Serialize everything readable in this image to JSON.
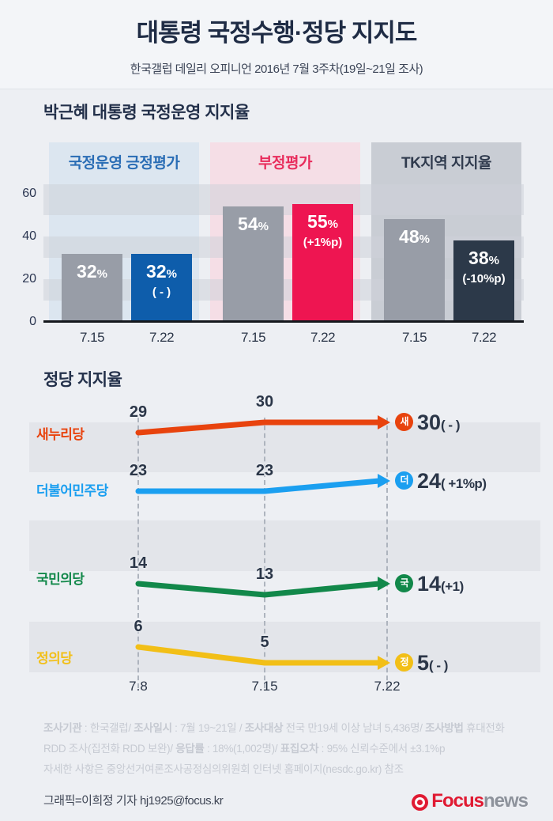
{
  "header": {
    "title": "대통령 국정수행·정당 지지도",
    "subtitle": "한국갤럽 데일리 오피니언 2016년 7월 3주차(19일~21일 조사)"
  },
  "approval_section_title": "박근혜 대통령 국정운영 지지율",
  "party_section_title": "정당 지지율",
  "colors": {
    "page_bg": "#EDEFF3",
    "positive_accent": "#0E5DAB",
    "negative_accent": "#EE1551",
    "tk_accent": "#2C3949",
    "prev_bar_gray": "#989DA7",
    "saenuri": "#E8430E",
    "minjoo": "#1B9FF0",
    "kukmin": "#12884A",
    "justice": "#F2BF17"
  },
  "chart_data": [
    {
      "type": "bar",
      "title": "박근혜 대통령 국정운영 지지율",
      "ylabel": "",
      "ylim": [
        0,
        64
      ],
      "ytick_labels": [
        "60",
        "40",
        "20",
        "0"
      ],
      "unit": "%",
      "grid": "horizontal-stripes",
      "groups": [
        {
          "label": "국정운영 긍정평가",
          "label_color": "#2A6DB5",
          "panel_color": "#DCE6F0",
          "bars": [
            {
              "x_label": "7.15",
              "value": 32,
              "num": "32",
              "unit": "%",
              "change": "",
              "color": "#989DA7"
            },
            {
              "x_label": "7.22",
              "value": 32,
              "num": "32",
              "unit": "%",
              "change": "( - )",
              "color": "#0E5DAB"
            }
          ]
        },
        {
          "label": "부정평가",
          "label_color": "#E82C5C",
          "panel_color": "#F5DEE6",
          "bars": [
            {
              "x_label": "7.15",
              "value": 54,
              "num": "54",
              "unit": "%",
              "change": "",
              "color": "#989DA7"
            },
            {
              "x_label": "7.22",
              "value": 55,
              "num": "55",
              "unit": "%",
              "change": "(+1%p)",
              "color": "#EE1551"
            }
          ]
        },
        {
          "label": "TK지역 지지율",
          "label_color": "#2F3A4D",
          "panel_color": "#C9CDD4",
          "bars": [
            {
              "x_label": "7.15",
              "value": 48,
              "num": "48",
              "unit": "%",
              "change": "",
              "color": "#989DA7"
            },
            {
              "x_label": "7.22",
              "value": 38,
              "num": "38",
              "unit": "%",
              "change": "(-10%p)",
              "color": "#2C3949"
            }
          ]
        }
      ]
    },
    {
      "type": "line",
      "title": "정당 지지율",
      "x": [
        "7.8",
        "7.15",
        "7.22"
      ],
      "legend_position": "left-of-lines",
      "series": [
        {
          "name": "새누리당",
          "badge": "새",
          "color": "#E8430E",
          "values": [
            29,
            30,
            30
          ],
          "result": "30",
          "change": "( - )"
        },
        {
          "name": "더불어민주당",
          "badge": "더",
          "color": "#1B9FF0",
          "values": [
            23,
            23,
            24
          ],
          "result": "24",
          "change": "( +1%p)"
        },
        {
          "name": "국민의당",
          "badge": "국",
          "color": "#12884A",
          "values": [
            14,
            13,
            14
          ],
          "result": "14",
          "change": "(+1)"
        },
        {
          "name": "정의당",
          "badge": "정",
          "color": "#F2BF17",
          "values": [
            6,
            5,
            5
          ],
          "result": "5",
          "change": "( - )"
        }
      ]
    }
  ],
  "footer": {
    "lines": [
      [
        {
          "text": "조사기관",
          "bold": true
        },
        {
          "text": " : 한국갤럽/ ",
          "bold": false
        },
        {
          "text": "조사일시",
          "bold": true
        },
        {
          "text": " : 7월 19~21일 / ",
          "bold": false
        },
        {
          "text": "조사대상",
          "bold": true
        },
        {
          "text": " 전국 만19세 이상 남녀 5,436명/ ",
          "bold": false
        },
        {
          "text": "조사방법",
          "bold": true
        },
        {
          "text": " 휴대전화",
          "bold": false
        }
      ],
      [
        {
          "text": "RDD 조사(집전화 RDD 보완)/ ",
          "bold": false
        },
        {
          "text": "응답률",
          "bold": true
        },
        {
          "text": " : 18%(1,002명)/ ",
          "bold": false
        },
        {
          "text": "표집오차",
          "bold": true
        },
        {
          "text": " : 95% 신뢰수준에서 ±3.1%p",
          "bold": false
        }
      ],
      [
        {
          "text": "자세한 사항은 중앙선거여론조사공정심의위원회 인터넷 홈페이지(nesdc.go.kr) 참조",
          "bold": false
        }
      ]
    ]
  },
  "credit": "그래픽=이희정 기자 hj1925@focus.kr",
  "logo": {
    "focus": "Focus",
    "news": "news"
  }
}
